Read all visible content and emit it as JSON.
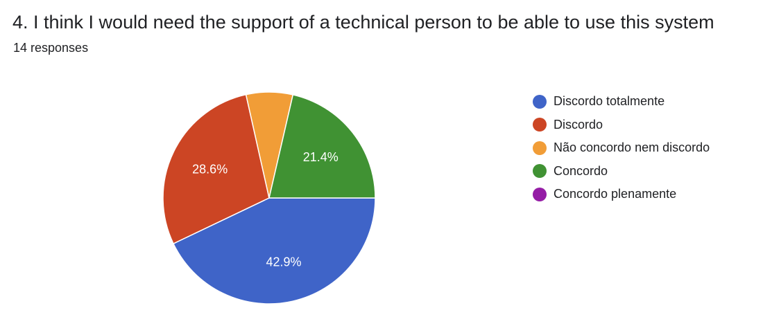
{
  "question": {
    "title": "4. I think I would need the support of a technical person to be able to use this system",
    "responses": "14 responses"
  },
  "chart_data": {
    "type": "pie",
    "title": "4. I think I would need the support of a technical person to be able to use this system",
    "subtitle": "14 responses",
    "legend_position": "right",
    "categories": [
      "Discordo totalmente",
      "Discordo",
      "Não concordo nem discordo",
      "Concordo",
      "Concordo plenamente"
    ],
    "values": [
      42.9,
      28.6,
      7.1,
      21.4,
      0
    ],
    "data_labels": [
      "42.9%",
      "28.6%",
      "",
      "21.4%",
      ""
    ],
    "colors": [
      "#3f64c8",
      "#cc4524",
      "#f19d37",
      "#409233",
      "#951da6"
    ]
  }
}
